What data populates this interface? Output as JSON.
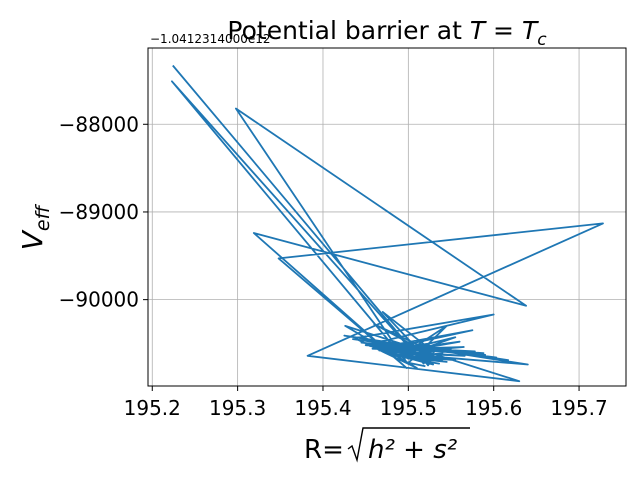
{
  "chart_data": {
    "type": "line",
    "title_prefix": "Potential barrier at ",
    "title_math": "T = T",
    "title_math_sub": "c",
    "xlabel_prefix": "R=",
    "xlabel_math": "h² + s²",
    "ylabel_main": "V",
    "ylabel_sub": "eff",
    "offset_text": "−1.0412314000e12",
    "xlim": [
      195.195,
      195.755
    ],
    "ylim": [
      -90985,
      -87130
    ],
    "xticks": [
      195.2,
      195.3,
      195.4,
      195.5,
      195.6,
      195.7
    ],
    "xtick_labels": [
      "195.2",
      "195.3",
      "195.4",
      "195.5",
      "195.6",
      "195.7"
    ],
    "yticks": [
      -88000,
      -89000,
      -90000
    ],
    "ytick_labels": [
      "−88000",
      "−89000",
      "−90000"
    ],
    "grid": true,
    "line_color": "#1f77b4",
    "series": [
      {
        "x": [
          195.224,
          195.518,
          195.223,
          195.497,
          195.298,
          195.638,
          195.319,
          195.498,
          195.348,
          195.728,
          195.382,
          195.63,
          195.426,
          195.51,
          195.437,
          195.6,
          195.45,
          195.588,
          195.458,
          195.575,
          195.466,
          195.566,
          195.472,
          195.56,
          195.478,
          195.555,
          195.484,
          195.55,
          195.49,
          195.545,
          195.494,
          195.54,
          195.499,
          195.536,
          195.505,
          195.532,
          195.51,
          195.529,
          195.515,
          195.526,
          195.52,
          195.523,
          195.525,
          195.52,
          195.505,
          195.545,
          195.49,
          195.555,
          195.478,
          195.565,
          195.465,
          195.578,
          195.455,
          195.59,
          195.445,
          195.603,
          195.435,
          195.617,
          195.425,
          195.64,
          195.518,
          195.47,
          195.53,
          195.46,
          195.54,
          195.48,
          195.525,
          195.5,
          195.52
        ],
        "y": [
          -87330,
          -90730,
          -87510,
          -90700,
          -87820,
          -90070,
          -89240,
          -90780,
          -89530,
          -89130,
          -90640,
          -90930,
          -90300,
          -90780,
          -90440,
          -90170,
          -90520,
          -90610,
          -90560,
          -90350,
          -90580,
          -90640,
          -90600,
          -90480,
          -90620,
          -90690,
          -90640,
          -90560,
          -90650,
          -90710,
          -90660,
          -90610,
          -90670,
          -90730,
          -90680,
          -90660,
          -90690,
          -90740,
          -90700,
          -90700,
          -90710,
          -90750,
          -90720,
          -90720,
          -90680,
          -90300,
          -90650,
          -90430,
          -90610,
          -90540,
          -90570,
          -90590,
          -90530,
          -90630,
          -90490,
          -90660,
          -90450,
          -90690,
          -90410,
          -90740,
          -90640,
          -90140,
          -90600,
          -90280,
          -90700,
          -90560,
          -90500,
          -90720,
          -90760
        ]
      }
    ]
  }
}
